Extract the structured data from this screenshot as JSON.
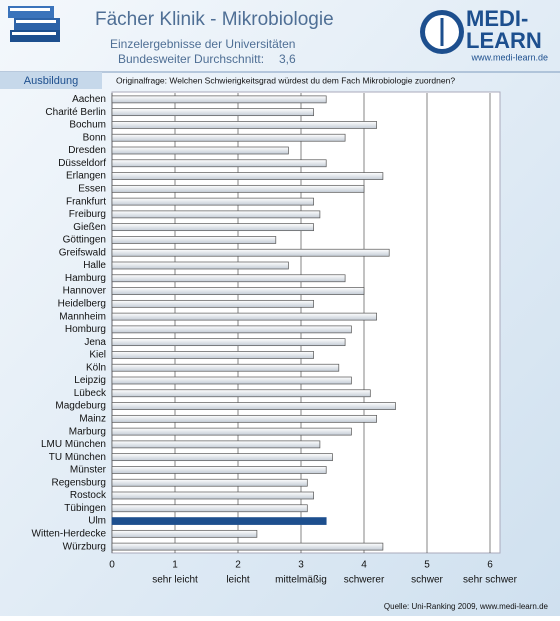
{
  "header": {
    "title": "Fächer Klinik - Mikrobiologie",
    "subtitle": "Einzelergebnisse der Universitäten",
    "average_text": "Bundesweiter Durchschnitt:",
    "average_value": "3,6",
    "logo_top": "MEDI-",
    "logo_bottom": "LEARN",
    "logo_url": "www.medi-learn.de",
    "tab": "Ausbildung",
    "question": "Originalfrage: Welchen Schwierigkeitsgrad würdest du dem Fach Mikrobiologie zuordnen?"
  },
  "footer": {
    "source": "Quelle: Uni-Ranking 2009, www.medi-learn.de"
  },
  "chart_data": {
    "type": "hbar",
    "categories": [
      "Aachen",
      "Charité Berlin",
      "Bochum",
      "Bonn",
      "Dresden",
      "Düsseldorf",
      "Erlangen",
      "Essen",
      "Frankfurt",
      "Freiburg",
      "Gießen",
      "Göttingen",
      "Greifswald",
      "Halle",
      "Hamburg",
      "Hannover",
      "Heidelberg",
      "Mannheim",
      "Homburg",
      "Jena",
      "Kiel",
      "Köln",
      "Leipzig",
      "Lübeck",
      "Magdeburg",
      "Mainz",
      "Marburg",
      "LMU München",
      "TU München",
      "Münster",
      "Regensburg",
      "Rostock",
      "Tübingen",
      "Ulm",
      "Witten-Herdecke",
      "Würzburg"
    ],
    "values": [
      3.4,
      3.2,
      4.2,
      3.7,
      2.8,
      3.4,
      4.3,
      4.0,
      3.2,
      3.3,
      3.2,
      2.6,
      4.4,
      2.8,
      3.7,
      4.0,
      3.2,
      4.2,
      3.8,
      3.7,
      3.2,
      3.6,
      3.8,
      4.1,
      4.5,
      4.2,
      3.8,
      3.3,
      3.5,
      3.4,
      3.1,
      3.2,
      3.1,
      3.4,
      2.3,
      4.3
    ],
    "color": "#dde2e8",
    "highlight_category": "Ulm",
    "highlight_color": "#1d4f8e",
    "xlim": [
      0,
      6
    ],
    "xticks": [
      0,
      1,
      2,
      3,
      4,
      5,
      6
    ],
    "xtick_descriptions": [
      "sehr leicht",
      "leicht",
      "mittelmäßig",
      "schwerer",
      "schwer",
      "sehr schwer"
    ],
    "grid": true
  }
}
